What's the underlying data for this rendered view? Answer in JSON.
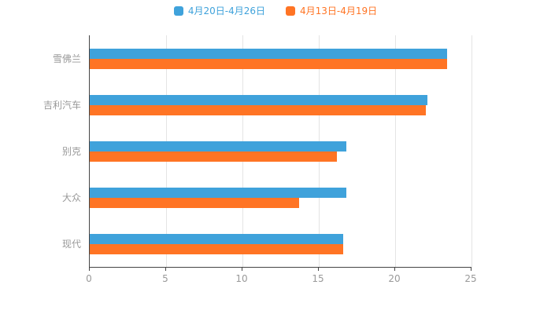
{
  "chart_data": {
    "type": "bar",
    "orientation": "horizontal",
    "title": "",
    "xlabel": "",
    "ylabel": "",
    "categories": [
      "雪佛兰",
      "吉利汽车",
      "别克",
      "大众",
      "现代"
    ],
    "series": [
      {
        "name": "4月20日-4月26日",
        "color": "#3FA2DB",
        "values": [
          23.4,
          22.1,
          16.8,
          16.8,
          16.6
        ]
      },
      {
        "name": "4月13日-4月19日",
        "color": "#FF7424",
        "values": [
          23.4,
          22.0,
          16.2,
          13.7,
          16.6
        ]
      }
    ],
    "xlim": [
      0,
      25
    ],
    "xticks": [
      0,
      5,
      10,
      15,
      20,
      25
    ],
    "grid": true,
    "legend_position": "top"
  },
  "colors": {
    "axis": "#444444",
    "gridline": "#e4e4e4",
    "label": "#999999"
  }
}
